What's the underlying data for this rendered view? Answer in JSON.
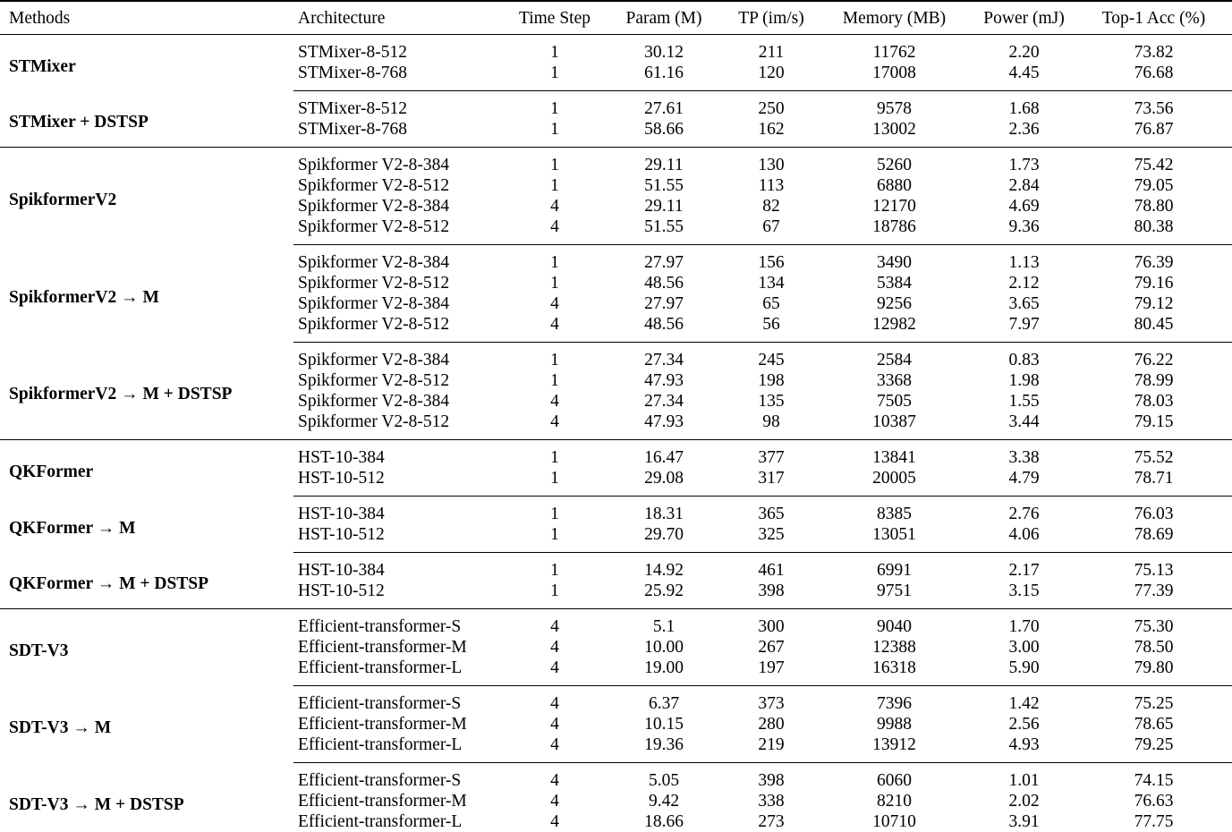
{
  "table": {
    "columns": [
      {
        "key": "method",
        "label": "Methods",
        "align": "left"
      },
      {
        "key": "architecture",
        "label": "Architecture",
        "align": "left"
      },
      {
        "key": "time_step",
        "label": "Time Step",
        "align": "center"
      },
      {
        "key": "param_m",
        "label": "Param (M)",
        "align": "center"
      },
      {
        "key": "tp_im_s",
        "label": "TP (im/s)",
        "align": "center"
      },
      {
        "key": "memory_mb",
        "label": "Memory (MB)",
        "align": "center"
      },
      {
        "key": "power_mj",
        "label": "Power (mJ)",
        "align": "center"
      },
      {
        "key": "top1_acc",
        "label": "Top-1 Acc (%)",
        "align": "center"
      }
    ],
    "row_keys": [
      "architecture",
      "time_step",
      "param_m",
      "tp_im_s",
      "memory_mb",
      "power_mj",
      "top1_acc"
    ],
    "text_color": "#000000",
    "background_color": "#ffffff",
    "groups": [
      {
        "method": "STMixer",
        "separator": "none",
        "rows": [
          {
            "architecture": "STMixer-8-512",
            "time_step": "1",
            "param_m": "30.12",
            "tp_im_s": "211",
            "memory_mb": "11762",
            "power_mj": "2.20",
            "top1_acc": "73.82"
          },
          {
            "architecture": "STMixer-8-768",
            "time_step": "1",
            "param_m": "61.16",
            "tp_im_s": "120",
            "memory_mb": "17008",
            "power_mj": "4.45",
            "top1_acc": "76.68"
          }
        ]
      },
      {
        "method": "STMixer + DSTSP",
        "separator": "partial",
        "rows": [
          {
            "architecture": "STMixer-8-512",
            "time_step": "1",
            "param_m": "27.61",
            "tp_im_s": "250",
            "memory_mb": "9578",
            "power_mj": "1.68",
            "top1_acc": "73.56"
          },
          {
            "architecture": "STMixer-8-768",
            "time_step": "1",
            "param_m": "58.66",
            "tp_im_s": "162",
            "memory_mb": "13002",
            "power_mj": "2.36",
            "top1_acc": "76.87"
          }
        ]
      },
      {
        "method": "SpikformerV2",
        "separator": "full",
        "rows": [
          {
            "architecture": "Spikformer V2-8-384",
            "time_step": "1",
            "param_m": "29.11",
            "tp_im_s": "130",
            "memory_mb": "5260",
            "power_mj": "1.73",
            "top1_acc": "75.42"
          },
          {
            "architecture": "Spikformer V2-8-512",
            "time_step": "1",
            "param_m": "51.55",
            "tp_im_s": "113",
            "memory_mb": "6880",
            "power_mj": "2.84",
            "top1_acc": "79.05"
          },
          {
            "architecture": "Spikformer V2-8-384",
            "time_step": "4",
            "param_m": "29.11",
            "tp_im_s": "82",
            "memory_mb": "12170",
            "power_mj": "4.69",
            "top1_acc": "78.80"
          },
          {
            "architecture": "Spikformer V2-8-512",
            "time_step": "4",
            "param_m": "51.55",
            "tp_im_s": "67",
            "memory_mb": "18786",
            "power_mj": "9.36",
            "top1_acc": "80.38"
          }
        ]
      },
      {
        "method": "SpikformerV2 → M",
        "separator": "partial",
        "rows": [
          {
            "architecture": "Spikformer V2-8-384",
            "time_step": "1",
            "param_m": "27.97",
            "tp_im_s": "156",
            "memory_mb": "3490",
            "power_mj": "1.13",
            "top1_acc": "76.39"
          },
          {
            "architecture": "Spikformer V2-8-512",
            "time_step": "1",
            "param_m": "48.56",
            "tp_im_s": "134",
            "memory_mb": "5384",
            "power_mj": "2.12",
            "top1_acc": "79.16"
          },
          {
            "architecture": "Spikformer V2-8-384",
            "time_step": "4",
            "param_m": "27.97",
            "tp_im_s": "65",
            "memory_mb": "9256",
            "power_mj": "3.65",
            "top1_acc": "79.12"
          },
          {
            "architecture": "Spikformer V2-8-512",
            "time_step": "4",
            "param_m": "48.56",
            "tp_im_s": "56",
            "memory_mb": "12982",
            "power_mj": "7.97",
            "top1_acc": "80.45"
          }
        ]
      },
      {
        "method": "SpikformerV2 → M + DSTSP",
        "separator": "partial",
        "rows": [
          {
            "architecture": "Spikformer V2-8-384",
            "time_step": "1",
            "param_m": "27.34",
            "tp_im_s": "245",
            "memory_mb": "2584",
            "power_mj": "0.83",
            "top1_acc": "76.22"
          },
          {
            "architecture": "Spikformer V2-8-512",
            "time_step": "1",
            "param_m": "47.93",
            "tp_im_s": "198",
            "memory_mb": "3368",
            "power_mj": "1.98",
            "top1_acc": "78.99"
          },
          {
            "architecture": "Spikformer V2-8-384",
            "time_step": "4",
            "param_m": "27.34",
            "tp_im_s": "135",
            "memory_mb": "7505",
            "power_mj": "1.55",
            "top1_acc": "78.03"
          },
          {
            "architecture": "Spikformer V2-8-512",
            "time_step": "4",
            "param_m": "47.93",
            "tp_im_s": "98",
            "memory_mb": "10387",
            "power_mj": "3.44",
            "top1_acc": "79.15"
          }
        ]
      },
      {
        "method": "QKFormer",
        "separator": "full",
        "rows": [
          {
            "architecture": "HST-10-384",
            "time_step": "1",
            "param_m": "16.47",
            "tp_im_s": "377",
            "memory_mb": "13841",
            "power_mj": "3.38",
            "top1_acc": "75.52"
          },
          {
            "architecture": "HST-10-512",
            "time_step": "1",
            "param_m": "29.08",
            "tp_im_s": "317",
            "memory_mb": "20005",
            "power_mj": "4.79",
            "top1_acc": "78.71"
          }
        ]
      },
      {
        "method": "QKFormer → M",
        "separator": "partial",
        "rows": [
          {
            "architecture": "HST-10-384",
            "time_step": "1",
            "param_m": "18.31",
            "tp_im_s": "365",
            "memory_mb": "8385",
            "power_mj": "2.76",
            "top1_acc": "76.03"
          },
          {
            "architecture": "HST-10-512",
            "time_step": "1",
            "param_m": "29.70",
            "tp_im_s": "325",
            "memory_mb": "13051",
            "power_mj": "4.06",
            "top1_acc": "78.69"
          }
        ]
      },
      {
        "method": "QKFormer → M + DSTSP",
        "separator": "partial",
        "rows": [
          {
            "architecture": "HST-10-384",
            "time_step": "1",
            "param_m": "14.92",
            "tp_im_s": "461",
            "memory_mb": "6991",
            "power_mj": "2.17",
            "top1_acc": "75.13"
          },
          {
            "architecture": "HST-10-512",
            "time_step": "1",
            "param_m": "25.92",
            "tp_im_s": "398",
            "memory_mb": "9751",
            "power_mj": "3.15",
            "top1_acc": "77.39"
          }
        ]
      },
      {
        "method": "SDT-V3",
        "separator": "full",
        "rows": [
          {
            "architecture": "Efficient-transformer-S",
            "time_step": "4",
            "param_m": "5.1",
            "tp_im_s": "300",
            "memory_mb": "9040",
            "power_mj": "1.70",
            "top1_acc": "75.30"
          },
          {
            "architecture": "Efficient-transformer-M",
            "time_step": "4",
            "param_m": "10.00",
            "tp_im_s": "267",
            "memory_mb": "12388",
            "power_mj": "3.00",
            "top1_acc": "78.50"
          },
          {
            "architecture": "Efficient-transformer-L",
            "time_step": "4",
            "param_m": "19.00",
            "tp_im_s": "197",
            "memory_mb": "16318",
            "power_mj": "5.90",
            "top1_acc": "79.80"
          }
        ]
      },
      {
        "method": "SDT-V3 → M",
        "separator": "partial",
        "rows": [
          {
            "architecture": "Efficient-transformer-S",
            "time_step": "4",
            "param_m": "6.37",
            "tp_im_s": "373",
            "memory_mb": "7396",
            "power_mj": "1.42",
            "top1_acc": "75.25"
          },
          {
            "architecture": "Efficient-transformer-M",
            "time_step": "4",
            "param_m": "10.15",
            "tp_im_s": "280",
            "memory_mb": "9988",
            "power_mj": "2.56",
            "top1_acc": "78.65"
          },
          {
            "architecture": "Efficient-transformer-L",
            "time_step": "4",
            "param_m": "19.36",
            "tp_im_s": "219",
            "memory_mb": "13912",
            "power_mj": "4.93",
            "top1_acc": "79.25"
          }
        ]
      },
      {
        "method": "SDT-V3 → M + DSTSP",
        "separator": "partial",
        "rows": [
          {
            "architecture": "Efficient-transformer-S",
            "time_step": "4",
            "param_m": "5.05",
            "tp_im_s": "398",
            "memory_mb": "6060",
            "power_mj": "1.01",
            "top1_acc": "74.15"
          },
          {
            "architecture": "Efficient-transformer-M",
            "time_step": "4",
            "param_m": "9.42",
            "tp_im_s": "338",
            "memory_mb": "8210",
            "power_mj": "2.02",
            "top1_acc": "76.63"
          },
          {
            "architecture": "Efficient-transformer-L",
            "time_step": "4",
            "param_m": "18.66",
            "tp_im_s": "273",
            "memory_mb": "10710",
            "power_mj": "3.91",
            "top1_acc": "77.75"
          }
        ]
      }
    ]
  }
}
